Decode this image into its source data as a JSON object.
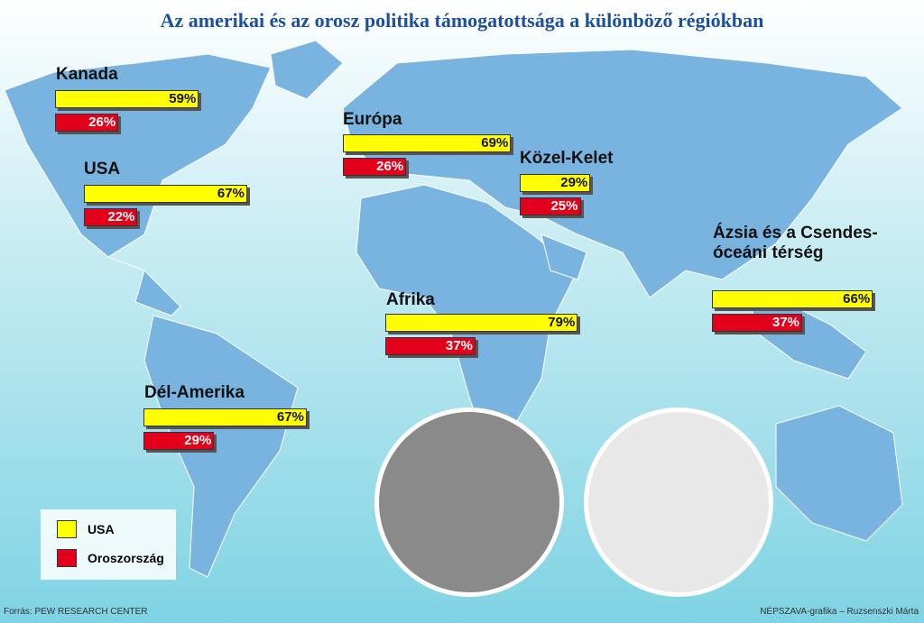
{
  "title": "Az amerikai és az orosz politika támogatottsága a különböző régiókban",
  "source": "Forrás: PEW RESEARCH CENTER",
  "credit": "NÉPSZAVA-grafika – Ruzsenszki Márta",
  "chart_data": {
    "type": "bar",
    "categories": [
      "Kanada",
      "USA",
      "Dél-Amerika",
      "Európa",
      "Közel-Kelet",
      "Afrika",
      "Ázsia és a Csendes-óceáni térség"
    ],
    "series": [
      {
        "name": "USA",
        "color": "#ffff00",
        "values": [
          59,
          67,
          67,
          69,
          29,
          79,
          66
        ],
        "value_labels": [
          "59%",
          "67%",
          "67%",
          "69%",
          "29%",
          "79%",
          "66%"
        ]
      },
      {
        "name": "Oroszország",
        "color": "#e2001a",
        "values": [
          26,
          22,
          29,
          26,
          25,
          37,
          37
        ],
        "value_labels": [
          "26%",
          "22%",
          "29%",
          "26%",
          "25%",
          "37%",
          "37%"
        ]
      }
    ]
  }
}
